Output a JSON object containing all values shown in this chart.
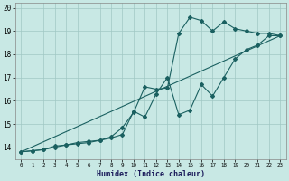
{
  "xlabel": "Humidex (Indice chaleur)",
  "xlim": [
    -0.5,
    23.5
  ],
  "ylim": [
    13.5,
    20.2
  ],
  "xticks": [
    0,
    1,
    2,
    3,
    4,
    5,
    6,
    7,
    8,
    9,
    10,
    11,
    12,
    13,
    14,
    15,
    16,
    17,
    18,
    19,
    20,
    21,
    22,
    23
  ],
  "yticks": [
    14,
    15,
    16,
    17,
    18,
    19,
    20
  ],
  "bg_color": "#c8e8e4",
  "grid_color": "#a0c8c4",
  "line_color": "#1a6060",
  "line1_x": [
    0,
    1,
    2,
    3,
    4,
    5,
    6,
    7,
    8,
    9,
    10,
    11,
    12,
    13,
    14,
    15,
    16,
    17,
    18,
    19,
    20,
    21,
    22,
    23
  ],
  "line1_y": [
    13.8,
    13.85,
    13.9,
    14.0,
    14.1,
    14.15,
    14.2,
    14.3,
    14.45,
    14.85,
    15.5,
    16.6,
    16.5,
    16.55,
    18.9,
    19.6,
    19.45,
    19.0,
    19.4,
    19.1,
    19.0,
    18.9,
    18.9,
    18.8
  ],
  "line2_x": [
    0,
    1,
    2,
    3,
    4,
    5,
    6,
    7,
    8,
    9,
    10,
    11,
    12,
    13,
    14,
    15,
    16,
    17,
    18,
    19,
    20,
    21,
    22,
    23
  ],
  "line2_y": [
    13.8,
    13.85,
    13.9,
    14.05,
    14.1,
    14.2,
    14.25,
    14.3,
    14.4,
    14.55,
    15.55,
    15.3,
    16.3,
    17.0,
    15.4,
    15.6,
    16.7,
    16.2,
    17.0,
    17.8,
    18.2,
    18.4,
    18.8,
    18.8
  ],
  "line3_x": [
    0,
    23
  ],
  "line3_y": [
    13.8,
    18.8
  ]
}
